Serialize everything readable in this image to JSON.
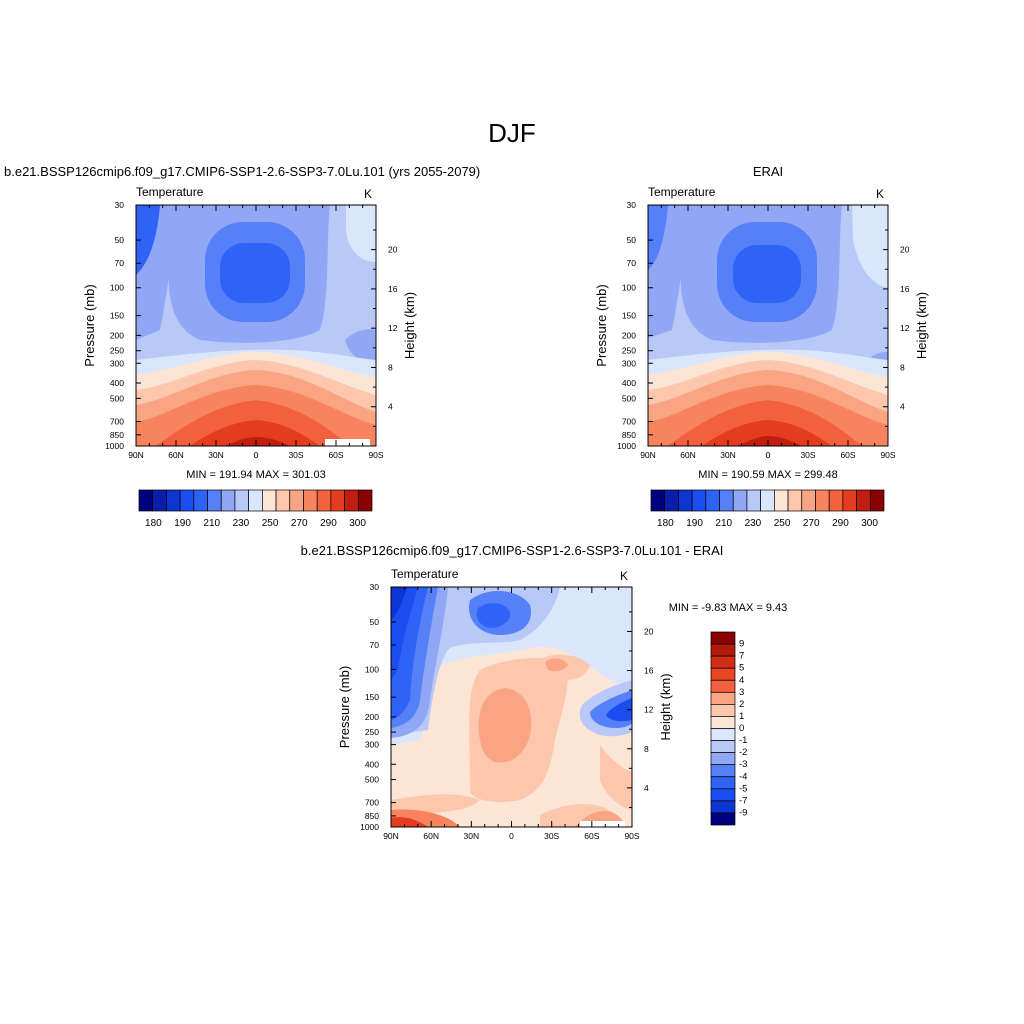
{
  "title": "DJF",
  "colors": {
    "levels": [
      "#00007f",
      "#0a1fa8",
      "#0d35d1",
      "#1a4ef0",
      "#2f63f8",
      "#5580f7",
      "#8fa7f5",
      "#b8c9f7",
      "#d9e6fb",
      "#fde5d6",
      "#fcc7ac",
      "#f9a583",
      "#f7845f",
      "#f2603d",
      "#e33c1f",
      "#c21d10",
      "#8b0000"
    ]
  },
  "chart_data": [
    {
      "type": "heatmap",
      "title": "b.e21.BSSP126cmip6.f09_g17.CMIP6-SSP1-2.6-SSP3-7.0Lu.101 (yrs 2055-2079)",
      "variable": "Temperature",
      "units": "K",
      "xlabel": "",
      "ylabel": "Pressure (mb)",
      "y2label": "Height (km)",
      "x_ticks": [
        "90N",
        "60N",
        "30N",
        "0",
        "30S",
        "60S",
        "90S"
      ],
      "y_ticks": [
        "30",
        "50",
        "70",
        "100",
        "150",
        "200",
        "250",
        "300",
        "400",
        "500",
        "700",
        "850",
        "1000"
      ],
      "y2_ticks": [
        "20",
        "16",
        "12",
        "8",
        "4"
      ],
      "min": "191.94",
      "max": "301.03",
      "stats": "MIN = 191.94  MAX = 301.03",
      "colorbar_labels": [
        "180",
        "190",
        "210",
        "230",
        "250",
        "270",
        "290",
        "300"
      ]
    },
    {
      "type": "heatmap",
      "title": "ERAI",
      "variable": "Temperature",
      "units": "K",
      "xlabel": "",
      "ylabel": "Pressure (mb)",
      "y2label": "Height (km)",
      "x_ticks": [
        "90N",
        "60N",
        "30N",
        "0",
        "30S",
        "60S",
        "90S"
      ],
      "y_ticks": [
        "30",
        "50",
        "70",
        "100",
        "150",
        "200",
        "250",
        "300",
        "400",
        "500",
        "700",
        "850",
        "1000"
      ],
      "y2_ticks": [
        "20",
        "16",
        "12",
        "8",
        "4"
      ],
      "min": "190.59",
      "max": "299.48",
      "stats": "MIN = 190.59  MAX = 299.48",
      "colorbar_labels": [
        "180",
        "190",
        "210",
        "230",
        "250",
        "270",
        "290",
        "300"
      ]
    },
    {
      "type": "heatmap",
      "title": "b.e21.BSSP126cmip6.f09_g17.CMIP6-SSP1-2.6-SSP3-7.0Lu.101 - ERAI",
      "variable": "Temperature",
      "units": "K",
      "xlabel": "",
      "ylabel": "Pressure (mb)",
      "y2label": "Height (km)",
      "x_ticks": [
        "90N",
        "60N",
        "30N",
        "0",
        "30S",
        "60S",
        "90S"
      ],
      "y_ticks": [
        "30",
        "50",
        "70",
        "100",
        "150",
        "200",
        "250",
        "300",
        "400",
        "500",
        "700",
        "850",
        "1000"
      ],
      "y2_ticks": [
        "20",
        "16",
        "12",
        "8",
        "4"
      ],
      "min": "-9.83",
      "max": "9.43",
      "stats": "MIN =  -9.83  MAX =   9.43",
      "colorbar_labels": [
        "9",
        "7",
        "5",
        "4",
        "3",
        "2",
        "1",
        "0",
        "-1",
        "-2",
        "-3",
        "-4",
        "-5",
        "-7",
        "-9"
      ]
    }
  ]
}
